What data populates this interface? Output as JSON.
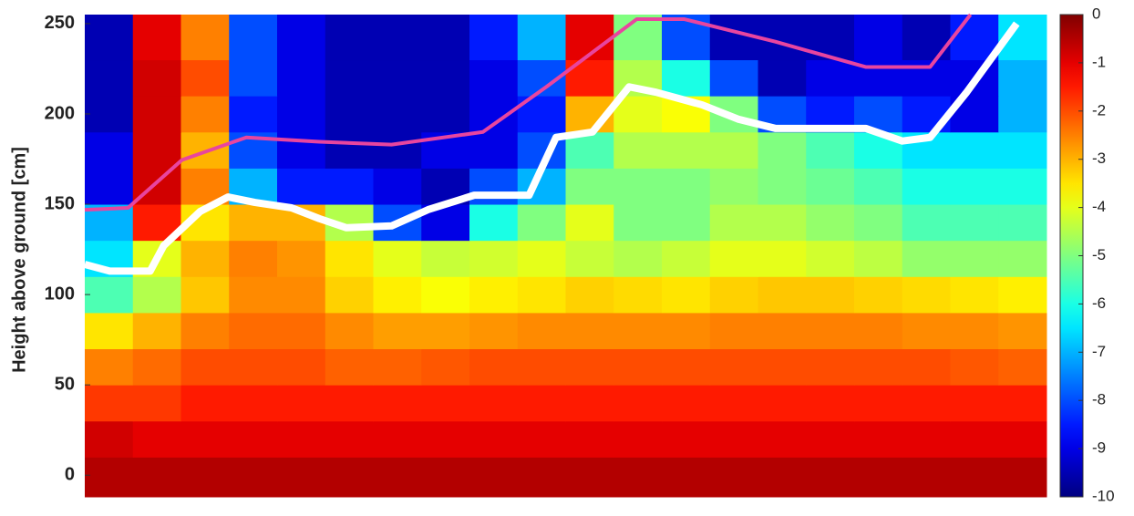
{
  "chart_data": {
    "type": "heatmap",
    "y_label": "Height above ground [cm]",
    "xlim": [
      0,
      100
    ],
    "ylim": [
      -12,
      255
    ],
    "yticks": [
      0,
      50,
      100,
      150,
      200,
      250
    ],
    "x_edges": [
      0,
      5,
      10,
      15,
      20,
      25,
      30,
      35,
      40,
      45,
      50,
      55,
      60,
      65,
      70,
      75,
      80,
      85,
      90,
      95,
      100
    ],
    "y_edges": [
      -12,
      10,
      30,
      50,
      70,
      90,
      110,
      130,
      150,
      170,
      190,
      210,
      230,
      255
    ],
    "z": [
      [
        -0.5,
        -0.5,
        -0.5,
        -0.5,
        -0.5,
        -0.5,
        -0.5,
        -0.5,
        -0.5,
        -0.5,
        -0.5,
        -0.5,
        -0.5,
        -0.5,
        -0.5,
        -0.5,
        -0.5,
        -0.5,
        -0.5,
        -0.5
      ],
      [
        -0.8,
        -1,
        -1,
        -1,
        -1,
        -1,
        -1,
        -1,
        -1,
        -1,
        -1,
        -1,
        -1,
        -1,
        -1,
        -1,
        -1,
        -1,
        -1,
        -1
      ],
      [
        -1.8,
        -1.8,
        -1.5,
        -1.5,
        -1.5,
        -1.5,
        -1.5,
        -1.5,
        -1.5,
        -1.5,
        -1.5,
        -1.5,
        -1.5,
        -1.5,
        -1.5,
        -1.5,
        -1.5,
        -1.5,
        -1.5,
        -1.5
      ],
      [
        -2.5,
        -2.3,
        -2,
        -2,
        -2,
        -2.2,
        -2.2,
        -2.1,
        -2,
        -2,
        -2,
        -2,
        -2,
        -2,
        -2,
        -2,
        -2,
        -2,
        -2.1,
        -2.2
      ],
      [
        -3.5,
        -3,
        -2.5,
        -2.3,
        -2.3,
        -2.6,
        -2.8,
        -2.8,
        -2.7,
        -2.6,
        -2.6,
        -2.6,
        -2.6,
        -2.5,
        -2.5,
        -2.5,
        -2.5,
        -2.6,
        -2.6,
        -2.7
      ],
      [
        -5.5,
        -4.5,
        -3.2,
        -2.6,
        -2.6,
        -3.3,
        -3.6,
        -3.8,
        -3.6,
        -3.5,
        -3.3,
        -3.4,
        -3.5,
        -3.3,
        -3.2,
        -3.2,
        -3.3,
        -3.4,
        -3.5,
        -3.6
      ],
      [
        -6.5,
        -4,
        -3,
        -2.5,
        -2.7,
        -3.5,
        -4,
        -4.3,
        -4.2,
        -4,
        -4.3,
        -4.5,
        -4.3,
        -4,
        -4,
        -4.2,
        -4.4,
        -4.8,
        -4.8,
        -4.8
      ],
      [
        -7,
        -1.5,
        -3.5,
        -3,
        -3,
        -4.5,
        -8,
        -9,
        -6,
        -5,
        -4,
        -5,
        -5,
        -4.5,
        -4.5,
        -4.8,
        -5,
        -5.5,
        -5.5,
        -5.5
      ],
      [
        -9,
        -0.8,
        -2.5,
        -7,
        -8.5,
        -8.5,
        -9,
        -9.5,
        -8,
        -7,
        -5,
        -5,
        -5,
        -4.8,
        -5,
        -5.2,
        -5.5,
        -6,
        -6,
        -6
      ],
      [
        -9,
        -0.8,
        -3,
        -8,
        -9,
        -9.5,
        -9.5,
        -9,
        -9,
        -8,
        -5.5,
        -4.5,
        -4.5,
        -4.5,
        -5,
        -5.5,
        -6,
        -6.5,
        -6.5,
        -6.5
      ],
      [
        -9.5,
        -0.8,
        -2.5,
        -8.5,
        -9,
        -9.5,
        -9.5,
        -9.5,
        -9,
        -8.5,
        -3,
        -4,
        -3.8,
        -5,
        -8,
        -8.5,
        -8,
        -8.5,
        -9,
        -7
      ],
      [
        -9.5,
        -0.8,
        -2,
        -8,
        -9,
        -9.5,
        -9.5,
        -9.5,
        -9,
        -8,
        -1.5,
        -4.5,
        -6,
        -8,
        -9.5,
        -9,
        -9,
        -9,
        -9,
        -7
      ],
      [
        -9.5,
        -1,
        -2.5,
        -8,
        -9,
        -9.5,
        -9.5,
        -9.5,
        -8.5,
        -7,
        -1,
        -5,
        -8,
        -9.5,
        -9.5,
        -9.5,
        -9,
        -9.5,
        -8.5,
        -6.5
      ]
    ],
    "clim": [
      -10,
      0
    ],
    "cticks": [
      0,
      -1,
      -2,
      -3,
      -4,
      -5,
      -6,
      -7,
      -8,
      -9,
      -10
    ],
    "colormap": "jet",
    "series": [
      {
        "color": "#ffffff",
        "x": [
          0,
          2.6,
          6.8,
          8.2,
          12,
          14.9,
          17.7,
          21.5,
          24.4,
          27.2,
          31.9,
          35.7,
          40.5,
          46.2,
          49,
          52.8,
          56.6,
          59.4,
          64.2,
          68,
          71.8,
          81.2,
          85,
          87.9,
          91.7,
          96.9
        ],
        "values": [
          116.7,
          113,
          113,
          127,
          146,
          154,
          151,
          148,
          142,
          137,
          138,
          147,
          155,
          155,
          187,
          190,
          215,
          212,
          205,
          197,
          192,
          192,
          185,
          187,
          212,
          250
        ]
      },
      {
        "color": "#e8459f",
        "x": [
          0,
          4.5,
          10.1,
          16.8,
          24.4,
          31.9,
          41.4,
          48,
          57.4,
          62.3,
          71.8,
          81.2,
          87.9,
          92.1
        ],
        "values": [
          146.9,
          148,
          174.5,
          187,
          184.6,
          183,
          190,
          215,
          252.5,
          252.5,
          240,
          226,
          226,
          255
        ]
      }
    ]
  }
}
